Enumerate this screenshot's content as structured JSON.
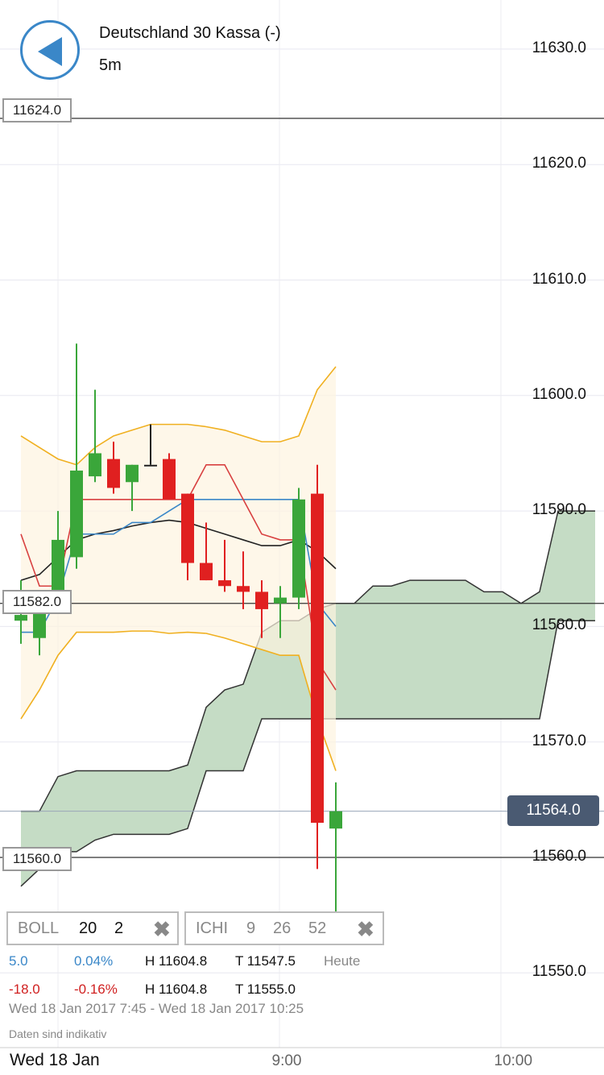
{
  "header": {
    "title": "Deutschland 30 Kassa (-)",
    "interval": "5m"
  },
  "price_tags": {
    "upper": "11624.0",
    "middle": "11582.0",
    "lower": "11560.0",
    "current": "11564.0"
  },
  "indicators": {
    "boll": {
      "name": "BOLL",
      "p1": "20",
      "p2": "2"
    },
    "ichi": {
      "name": "ICHI",
      "p1": "9",
      "p2": "26",
      "p3": "52"
    }
  },
  "stats": {
    "row1": {
      "change": "5.0",
      "pct": "0.04%",
      "high": "H 11604.8",
      "low": "T 11547.5",
      "label": "Heute"
    },
    "row2": {
      "change": "-18.0",
      "pct": "-0.16%",
      "high": "H 11604.8",
      "low": "T 11555.0"
    },
    "range": "Wed 18 Jan 2017 7:45 - Wed 18 Jan 2017 10:25",
    "note": "Daten sind indikativ"
  },
  "footer": {
    "date": "Wed 18 Jan"
  },
  "colors": {
    "up": "#3aa63a",
    "down": "#e02020",
    "accent": "#3a87c8",
    "cloud": "#c5dcc5",
    "boll_band": "#f0b020"
  },
  "chart_data": {
    "type": "candlestick",
    "title": "Deutschland 30 Kassa (-)",
    "interval": "5m",
    "ylim": [
      11547,
      11634
    ],
    "y_ticks": [
      "11630.0",
      "11620.0",
      "11610.0",
      "11600.0",
      "11590.0",
      "11580.0",
      "11570.0",
      "11560.0",
      "11550.0"
    ],
    "x_ticks": [
      {
        "label": "9:00",
        "index": 14.5
      },
      {
        "label": "10:00",
        "index": 26.5
      }
    ],
    "horizontal_lines": [
      11624.0,
      11582.0,
      11560.0,
      11564.0
    ],
    "candles": [
      {
        "o": 11580.5,
        "h": 11584.0,
        "l": 11578.5,
        "c": 11581.0
      },
      {
        "o": 11579.0,
        "h": 11583.0,
        "l": 11577.5,
        "c": 11582.5
      },
      {
        "o": 11583.0,
        "h": 11590.0,
        "l": 11582.0,
        "c": 11587.5
      },
      {
        "o": 11586.0,
        "h": 11604.5,
        "l": 11585.0,
        "c": 11593.5
      },
      {
        "o": 11593.0,
        "h": 11600.5,
        "l": 11592.5,
        "c": 11595.0
      },
      {
        "o": 11594.5,
        "h": 11596.0,
        "l": 11591.5,
        "c": 11592.0
      },
      {
        "o": 11592.5,
        "h": 11594.0,
        "l": 11590.0,
        "c": 11594.0
      },
      {
        "o": 11594.0,
        "h": 11597.5,
        "l": 11594.0,
        "c": 11594.0
      },
      {
        "o": 11594.5,
        "h": 11595.0,
        "l": 11591.0,
        "c": 11591.0
      },
      {
        "o": 11591.5,
        "h": 11591.5,
        "l": 11584.0,
        "c": 11585.5
      },
      {
        "o": 11585.5,
        "h": 11589.0,
        "l": 11584.0,
        "c": 11584.0
      },
      {
        "o": 11584.0,
        "h": 11587.5,
        "l": 11583.0,
        "c": 11583.5
      },
      {
        "o": 11583.5,
        "h": 11586.5,
        "l": 11581.5,
        "c": 11583.0
      },
      {
        "o": 11583.0,
        "h": 11584.0,
        "l": 11579.0,
        "c": 11581.5
      },
      {
        "o": 11582.0,
        "h": 11583.5,
        "l": 11579.0,
        "c": 11582.5
      },
      {
        "o": 11582.5,
        "h": 11592.0,
        "l": 11581.5,
        "c": 11591.0
      },
      {
        "o": 11591.5,
        "h": 11594.0,
        "l": 11559.0,
        "c": 11563.0
      },
      {
        "o": 11562.5,
        "h": 11566.5,
        "l": 11555.0,
        "c": 11564.0
      }
    ],
    "first_index": 0,
    "boll_upper": [
      11596.5,
      11595.5,
      11594.5,
      11594.0,
      11595.5,
      11596.5,
      11597.0,
      11597.5,
      11597.5,
      11597.5,
      11597.3,
      11597.0,
      11596.5,
      11596.0,
      11596.0,
      11596.5,
      11600.5,
      11602.5
    ],
    "boll_lower": [
      11572.0,
      11574.5,
      11577.5,
      11579.5,
      11579.5,
      11579.5,
      11579.6,
      11579.6,
      11579.4,
      11579.5,
      11579.4,
      11579.0,
      11578.5,
      11578.0,
      11577.5,
      11577.5,
      11572.0,
      11567.5
    ],
    "boll_mid": [
      11584.0,
      11584.5,
      11586.0,
      11587.5,
      11588.0,
      11588.3,
      11588.7,
      11589.0,
      11589.2,
      11589.0,
      11588.5,
      11588.0,
      11587.5,
      11587.0,
      11587.0,
      11587.5,
      11586.5,
      11585.0
    ],
    "ichi_tenkan": [
      11579.5,
      11579.5,
      11582.5,
      11588.0,
      11588.0,
      11588.0,
      11589.0,
      11589.0,
      11590.0,
      11591.0,
      11591.0,
      11591.0,
      11591.0,
      11591.0,
      11591.0,
      11591.0,
      11582.0,
      11580.0
    ],
    "ichi_kijun": [
      11588.0,
      11583.5,
      11583.5,
      11591.0,
      11591.0,
      11591.0,
      11591.0,
      11591.0,
      11591.0,
      11591.0,
      11594.0,
      11594.0,
      11591.0,
      11588.0,
      11587.5,
      11587.5,
      11577.0,
      11574.5
    ],
    "cloud_index_start": 0,
    "cloud_a": [
      11564.0,
      11564.0,
      11567.0,
      11567.5,
      11567.5,
      11567.5,
      11567.5,
      11567.5,
      11567.5,
      11568.0,
      11573.0,
      11574.5,
      11575.0,
      11579.5,
      11580.5,
      11580.5,
      11581.5,
      11582.0,
      11582.0,
      11583.5,
      11583.5,
      11584.0,
      11584.0,
      11584.0,
      11584.0,
      11583.0,
      11583.0,
      11582.0,
      11583.0,
      11590.0,
      11590.0,
      11590.0
    ],
    "cloud_b": [
      11557.5,
      11559.0,
      11560.5,
      11560.5,
      11561.5,
      11562.0,
      11562.0,
      11562.0,
      11562.0,
      11562.5,
      11567.5,
      11567.5,
      11567.5,
      11572.0,
      11572.0,
      11572.0,
      11572.0,
      11572.0,
      11572.0,
      11572.0,
      11572.0,
      11572.0,
      11572.0,
      11572.0,
      11572.0,
      11572.0,
      11572.0,
      11572.0,
      11572.0,
      11580.5,
      11580.5,
      11580.5
    ]
  }
}
